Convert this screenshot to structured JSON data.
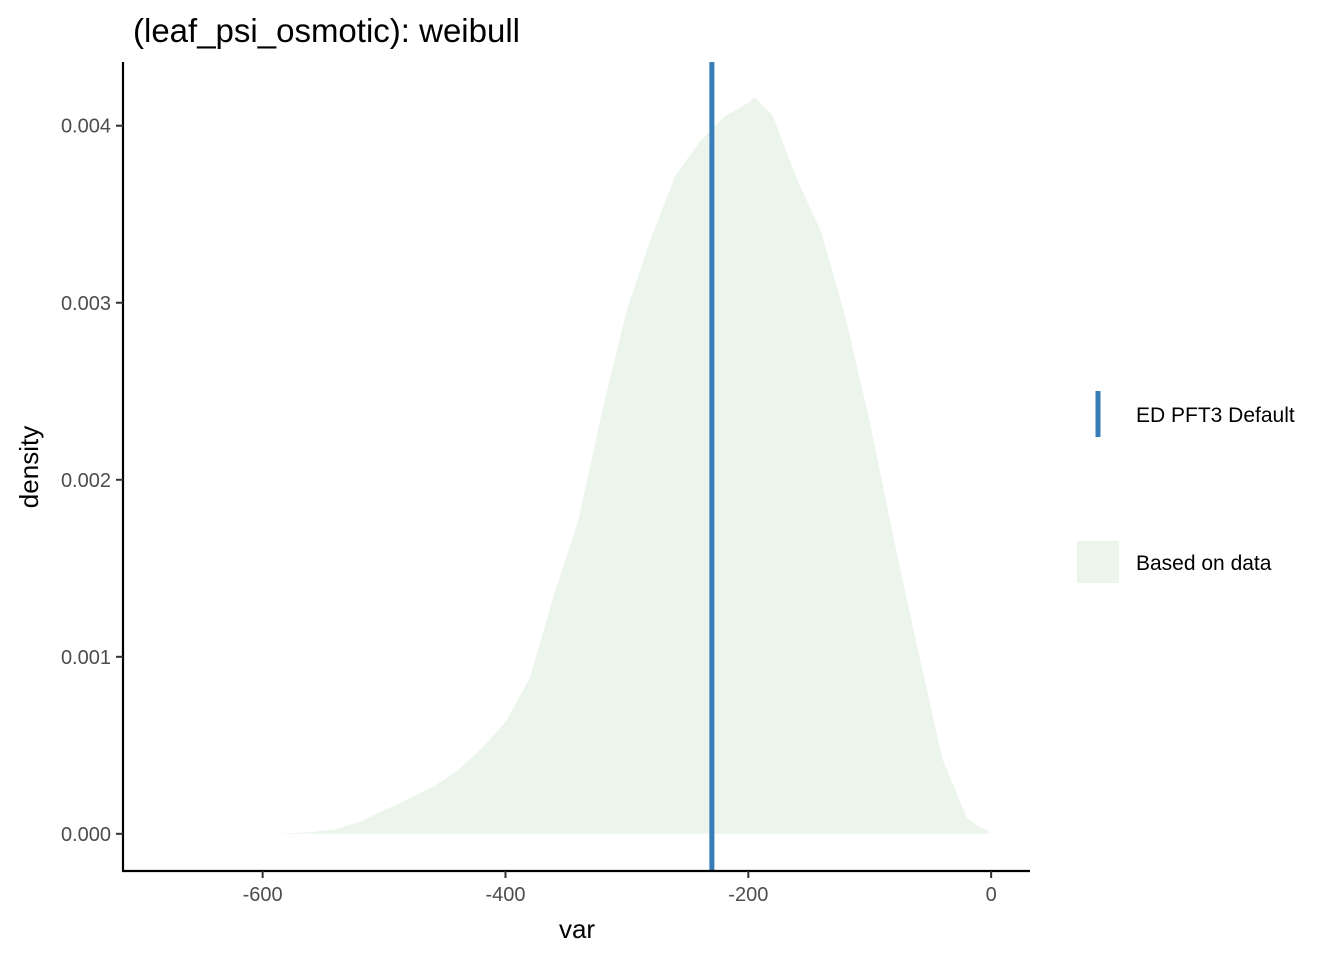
{
  "chart_data": {
    "type": "area",
    "title": "(leaf_psi_osmotic): weibull",
    "xlabel": "var",
    "ylabel": "density",
    "xlim": [
      -715,
      32
    ],
    "ylim": [
      -0.00021,
      0.00436
    ],
    "x_ticks": [
      -600,
      -400,
      -200,
      0
    ],
    "y_ticks": [
      0.0,
      0.001,
      0.002,
      0.003,
      0.004
    ],
    "x_tick_labels": [
      "-600",
      "-400",
      "-200",
      "0"
    ],
    "y_tick_labels": [
      "0.000",
      "0.001",
      "0.002",
      "0.003",
      "0.004"
    ],
    "grid": false,
    "legend_position": "right",
    "series": [
      {
        "name": "Based on data",
        "kind": "density-area",
        "color": "#ebf5eb",
        "x": [
          -600,
          -580,
          -560,
          -540,
          -520,
          -500,
          -480,
          -460,
          -440,
          -420,
          -400,
          -380,
          -360,
          -340,
          -320,
          -300,
          -280,
          -260,
          -240,
          -220,
          -200,
          -195,
          -180,
          -160,
          -140,
          -120,
          -100,
          -80,
          -60,
          -40,
          -20,
          -10,
          -2
        ],
        "y": [
          0.0,
          3e-06,
          9e-06,
          2.6e-05,
          6.8e-05,
          0.000133,
          0.000195,
          0.000264,
          0.000355,
          0.00048,
          0.00063,
          0.00088,
          0.00135,
          0.00177,
          0.0024,
          0.00296,
          0.00337,
          0.00372,
          0.00391,
          0.00405,
          0.00413,
          0.00416,
          0.00406,
          0.0037,
          0.0034,
          0.00292,
          0.00233,
          0.00166,
          0.00103,
          0.00042,
          9e-05,
          4e-05,
          2e-05
        ]
      },
      {
        "name": "ED PFT3 Default",
        "kind": "vline",
        "color": "#377eb8",
        "x": -230
      }
    ]
  }
}
